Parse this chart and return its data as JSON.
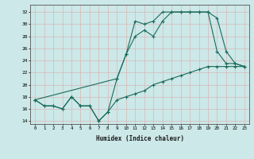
{
  "xlabel": "Humidex (Indice chaleur)",
  "ylabel": "",
  "bg_color": "#cce8e8",
  "grid_color": "#b0d0d0",
  "line_color": "#1a6b5a",
  "xlim": [
    -0.5,
    23.5
  ],
  "ylim": [
    13.5,
    33.2
  ],
  "xticks": [
    0,
    1,
    2,
    3,
    4,
    5,
    6,
    7,
    8,
    9,
    10,
    11,
    12,
    13,
    14,
    15,
    16,
    17,
    18,
    19,
    20,
    21,
    22,
    23
  ],
  "yticks": [
    14,
    16,
    18,
    20,
    22,
    24,
    26,
    28,
    30,
    32
  ],
  "line1_x": [
    0,
    1,
    2,
    3,
    4,
    5,
    6,
    7,
    8,
    9,
    10,
    11,
    12,
    13,
    14,
    15,
    16,
    17,
    18,
    19,
    20,
    21,
    22,
    23
  ],
  "line1_y": [
    17.5,
    16.5,
    16.5,
    16,
    18,
    16.5,
    16.5,
    14,
    15.5,
    21,
    25,
    30.5,
    30,
    30.5,
    32,
    32,
    32,
    32,
    32,
    32,
    25.5,
    23.5,
    23.5,
    23
  ],
  "line2_x": [
    0,
    9,
    10,
    11,
    12,
    13,
    14,
    15,
    16,
    17,
    18,
    19,
    20,
    21,
    22,
    23
  ],
  "line2_y": [
    17.5,
    21,
    25,
    28,
    29,
    28,
    30.5,
    32,
    32,
    32,
    32,
    32,
    31,
    25.5,
    23.5,
    23
  ],
  "line3_x": [
    0,
    1,
    2,
    3,
    4,
    5,
    6,
    7,
    8,
    9,
    10,
    11,
    12,
    13,
    14,
    15,
    16,
    17,
    18,
    19,
    20,
    21,
    22,
    23
  ],
  "line3_y": [
    17.5,
    16.5,
    16.5,
    16,
    18,
    16.5,
    16.5,
    14,
    15.5,
    17.5,
    18,
    18.5,
    19,
    20,
    20.5,
    21,
    21.5,
    22,
    22.5,
    23,
    23,
    23,
    23,
    23
  ]
}
